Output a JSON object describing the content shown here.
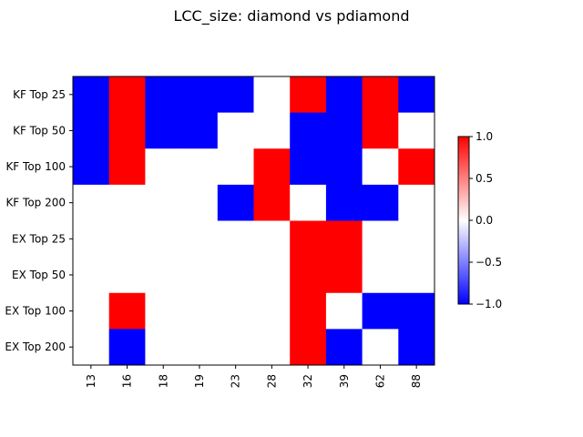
{
  "chart_data": {
    "type": "heatmap",
    "title": "LCC_size: diamond vs pdiamond",
    "xlabel": "",
    "ylabel": "",
    "x_categories": [
      "13",
      "16",
      "18",
      "19",
      "23",
      "28",
      "32",
      "39",
      "62",
      "88"
    ],
    "y_categories": [
      "KF Top 25",
      "KF Top 50",
      "KF Top 100",
      "KF Top 200",
      "EX Top 25",
      "EX Top 50",
      "EX Top 100",
      "EX Top 200"
    ],
    "values": [
      [
        -1,
        1,
        -1,
        -1,
        -1,
        0,
        1,
        -1,
        1,
        -1
      ],
      [
        -1,
        1,
        -1,
        -1,
        0,
        0,
        -1,
        -1,
        1,
        0
      ],
      [
        -1,
        1,
        0,
        0,
        0,
        1,
        -1,
        -1,
        0,
        1
      ],
      [
        0,
        0,
        0,
        0,
        -1,
        1,
        0,
        -1,
        -1,
        0
      ],
      [
        0,
        0,
        0,
        0,
        0,
        0,
        1,
        1,
        0,
        0
      ],
      [
        0,
        0,
        0,
        0,
        0,
        0,
        1,
        1,
        0,
        0
      ],
      [
        0,
        1,
        0,
        0,
        0,
        0,
        1,
        0,
        -1,
        -1
      ],
      [
        0,
        -1,
        0,
        0,
        0,
        0,
        1,
        -1,
        0,
        -1
      ]
    ],
    "colormap": "bwr",
    "colors": {
      "low": "#0000ff",
      "mid": "#ffffff",
      "high": "#ff0000"
    },
    "vmin": -1.0,
    "vmax": 1.0,
    "colorbar_ticks": [
      "1.0",
      "0.5",
      "0.0",
      "−0.5",
      "−1.0"
    ],
    "colorbar_values": [
      1.0,
      0.5,
      0.0,
      -0.5,
      -1.0
    ],
    "grid": false
  }
}
